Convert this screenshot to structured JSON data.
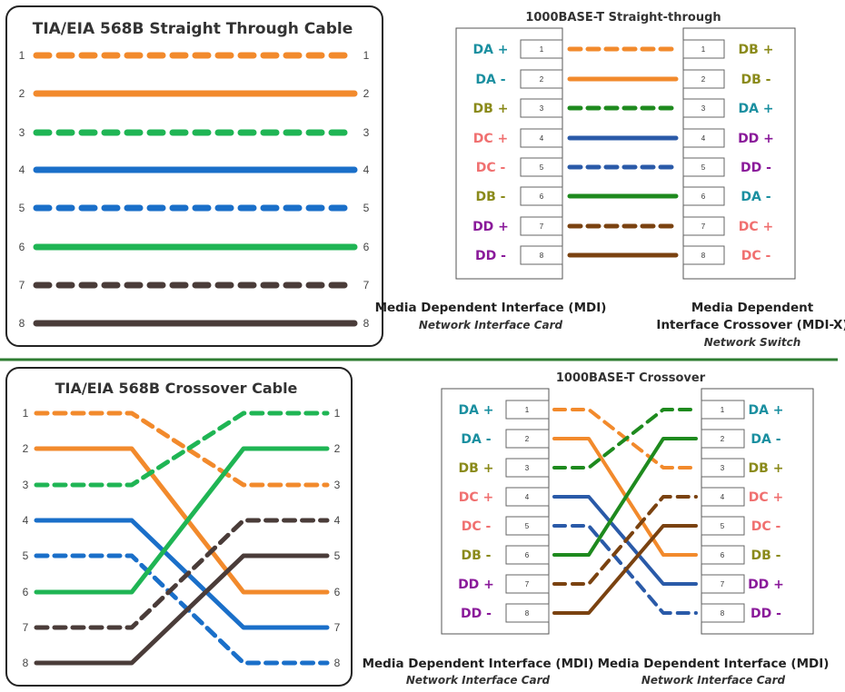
{
  "top_left_title": "TIA/EIA 568B Straight Through Cable",
  "bottom_left_title": "TIA/EIA 568B Crossover Cable",
  "top_right_title": "1000BASE-T Straight-through",
  "bottom_right_title": "1000BASE-T Crossover",
  "pins": [
    "1",
    "2",
    "3",
    "4",
    "5",
    "6",
    "7",
    "8"
  ],
  "colors": {
    "orange": "#f28a2c",
    "green": "#1fb554",
    "blue": "#1a6fc9",
    "brown": "#4a3c39",
    "dkgreen": "#1e8a1e",
    "navy": "#2a5aa8",
    "dkbrown": "#7a4210",
    "rule": "#2e7d32"
  },
  "wires_left": [
    {
      "color": "orange",
      "dashed": true
    },
    {
      "color": "orange",
      "dashed": false
    },
    {
      "color": "green",
      "dashed": true
    },
    {
      "color": "blue",
      "dashed": false
    },
    {
      "color": "blue",
      "dashed": true
    },
    {
      "color": "green",
      "dashed": false
    },
    {
      "color": "brown",
      "dashed": true
    },
    {
      "color": "brown",
      "dashed": false
    }
  ],
  "wires_right": [
    {
      "color": "orange",
      "dashed": true
    },
    {
      "color": "orange",
      "dashed": false
    },
    {
      "color": "dkgreen",
      "dashed": true
    },
    {
      "color": "navy",
      "dashed": false
    },
    {
      "color": "navy",
      "dashed": true
    },
    {
      "color": "dkgreen",
      "dashed": false
    },
    {
      "color": "dkbrown",
      "dashed": true
    },
    {
      "color": "dkbrown",
      "dashed": false
    }
  ],
  "crossover_map": [
    3,
    6,
    1,
    7,
    8,
    2,
    4,
    5
  ],
  "signal_colors": {
    "DA": "#1a8fa0",
    "DB": "#8a8a1a",
    "DC": "#f07070",
    "DD": "#8a1a9a"
  },
  "signals_mdi": [
    "DA +",
    "DA -",
    "DB +",
    "DC +",
    "DC -",
    "DB -",
    "DD +",
    "DD -"
  ],
  "signals_mdix": [
    "DB +",
    "DB -",
    "DA +",
    "DD +",
    "DD -",
    "DA -",
    "DC +",
    "DC -"
  ],
  "captions": {
    "top_mdi_title": "Media Dependent Interface (MDI)",
    "top_mdi_sub": "Network Interface Card",
    "top_mdix_title_1": "Media Dependent",
    "top_mdix_title_2": "Interface Crossover (MDI-X)",
    "top_mdix_sub": "Network Switch",
    "bottom_left_title": "Media Dependent Interface (MDI)",
    "bottom_left_sub": "Network Interface Card",
    "bottom_right_title": "Media Dependent Interface (MDI)",
    "bottom_right_sub": "Network Interface Card"
  }
}
